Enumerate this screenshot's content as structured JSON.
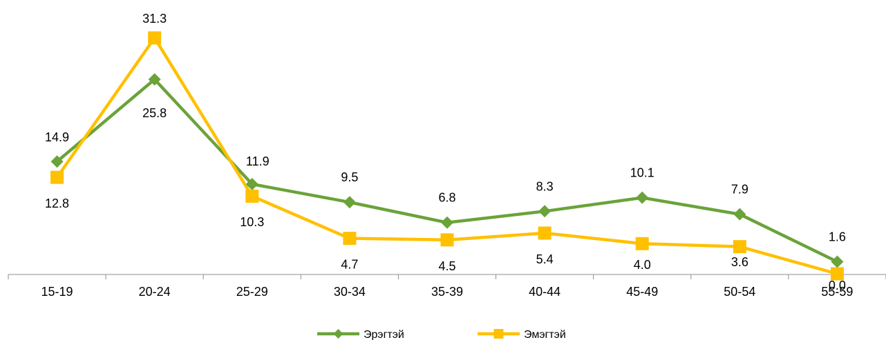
{
  "chart_data": {
    "type": "line",
    "title": "",
    "xlabel": "",
    "ylabel": "",
    "categories": [
      "15-19",
      "20-24",
      "25-29",
      "30-34",
      "35-39",
      "40-44",
      "45-49",
      "50-54",
      "55-59"
    ],
    "series": [
      {
        "name": "Эрэгтэй",
        "color": "#6aa339",
        "marker": "diamond",
        "values": [
          14.9,
          25.8,
          11.9,
          9.5,
          6.8,
          8.3,
          10.1,
          7.9,
          1.6
        ],
        "labels": [
          "14.9",
          "25.8",
          "11.9",
          "9.5",
          "6.8",
          "8.3",
          "10.1",
          "7.9",
          "1.6"
        ]
      },
      {
        "name": "Эмэгтэй",
        "color": "#ffc000",
        "marker": "square",
        "values": [
          12.8,
          31.3,
          10.3,
          4.7,
          4.5,
          5.4,
          4.0,
          3.6,
          0.0
        ],
        "labels": [
          "12.8",
          "31.3",
          "10.3",
          "4.7",
          "4.5",
          "5.4",
          "4.0",
          "3.6",
          "0.0"
        ]
      }
    ],
    "ylim": [
      0,
      35
    ],
    "y_axis_visible": false,
    "grid": false,
    "legend": {
      "position": "bottom"
    }
  }
}
